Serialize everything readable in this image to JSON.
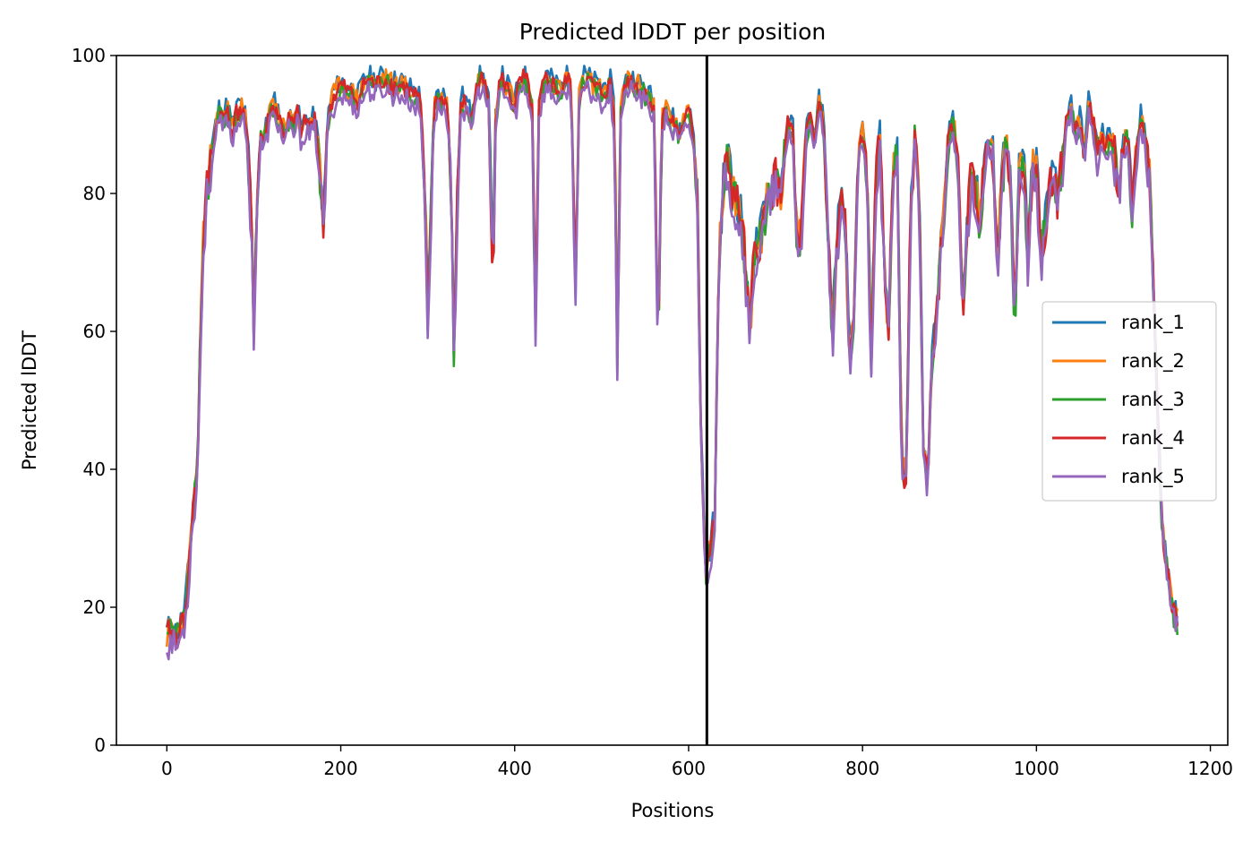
{
  "chart_data": {
    "type": "line",
    "title": "Predicted lDDT per position",
    "xlabel": "Positions",
    "ylabel": "Predicted lDDT",
    "xlim": [
      -58,
      1220
    ],
    "ylim": [
      0,
      100
    ],
    "xticks": [
      0,
      200,
      400,
      600,
      800,
      1000,
      1200
    ],
    "yticks": [
      0,
      20,
      40,
      60,
      80,
      100
    ],
    "grid": false,
    "legend_position": "center-right",
    "vline_x": 621,
    "vline_color": "#000000",
    "base_profile": [
      [
        0,
        15
      ],
      [
        5,
        16
      ],
      [
        10,
        15
      ],
      [
        15,
        16
      ],
      [
        20,
        18
      ],
      [
        25,
        24
      ],
      [
        30,
        34
      ],
      [
        35,
        38
      ],
      [
        38,
        55
      ],
      [
        42,
        72
      ],
      [
        46,
        80
      ],
      [
        50,
        84
      ],
      [
        55,
        88
      ],
      [
        60,
        91
      ],
      [
        65,
        90
      ],
      [
        70,
        92
      ],
      [
        75,
        88
      ],
      [
        80,
        91
      ],
      [
        85,
        92
      ],
      [
        90,
        90
      ],
      [
        95,
        82
      ],
      [
        98,
        72
      ],
      [
        100,
        60
      ],
      [
        104,
        80
      ],
      [
        108,
        88
      ],
      [
        112,
        87
      ],
      [
        118,
        91
      ],
      [
        125,
        92
      ],
      [
        130,
        90
      ],
      [
        135,
        88
      ],
      [
        140,
        90
      ],
      [
        145,
        89
      ],
      [
        150,
        91
      ],
      [
        155,
        88
      ],
      [
        160,
        90
      ],
      [
        165,
        89
      ],
      [
        170,
        90
      ],
      [
        175,
        85
      ],
      [
        180,
        75
      ],
      [
        185,
        90
      ],
      [
        190,
        93
      ],
      [
        200,
        95
      ],
      [
        210,
        94
      ],
      [
        220,
        93
      ],
      [
        230,
        96
      ],
      [
        240,
        95
      ],
      [
        250,
        96
      ],
      [
        260,
        95
      ],
      [
        270,
        95
      ],
      [
        280,
        94
      ],
      [
        290,
        93
      ],
      [
        293,
        90
      ],
      [
        297,
        78
      ],
      [
        300,
        62
      ],
      [
        303,
        72
      ],
      [
        307,
        92
      ],
      [
        312,
        93
      ],
      [
        318,
        93
      ],
      [
        323,
        92
      ],
      [
        327,
        80
      ],
      [
        330,
        56
      ],
      [
        334,
        78
      ],
      [
        338,
        93
      ],
      [
        345,
        92
      ],
      [
        350,
        90
      ],
      [
        355,
        94
      ],
      [
        360,
        96
      ],
      [
        365,
        95
      ],
      [
        370,
        93
      ],
      [
        375,
        66
      ],
      [
        378,
        90
      ],
      [
        383,
        96
      ],
      [
        390,
        95
      ],
      [
        400,
        92
      ],
      [
        405,
        95
      ],
      [
        410,
        96
      ],
      [
        415,
        95
      ],
      [
        420,
        92
      ],
      [
        424,
        60
      ],
      [
        428,
        92
      ],
      [
        435,
        96
      ],
      [
        445,
        95
      ],
      [
        455,
        94
      ],
      [
        460,
        96
      ],
      [
        465,
        95
      ],
      [
        470,
        66
      ],
      [
        474,
        93
      ],
      [
        480,
        96
      ],
      [
        490,
        95
      ],
      [
        500,
        94
      ],
      [
        510,
        95
      ],
      [
        515,
        90
      ],
      [
        518,
        55
      ],
      [
        522,
        92
      ],
      [
        530,
        96
      ],
      [
        540,
        95
      ],
      [
        550,
        94
      ],
      [
        560,
        92
      ],
      [
        565,
        57
      ],
      [
        569,
        90
      ],
      [
        575,
        92
      ],
      [
        580,
        90
      ],
      [
        590,
        88
      ],
      [
        600,
        91
      ],
      [
        605,
        88
      ],
      [
        610,
        80
      ],
      [
        615,
        40
      ],
      [
        620,
        25
      ],
      [
        625,
        28
      ],
      [
        630,
        32
      ],
      [
        635,
        70
      ],
      [
        640,
        80
      ],
      [
        645,
        85
      ],
      [
        650,
        80
      ],
      [
        655,
        78
      ],
      [
        660,
        76
      ],
      [
        665,
        70
      ],
      [
        670,
        58
      ],
      [
        675,
        70
      ],
      [
        680,
        72
      ],
      [
        685,
        74
      ],
      [
        690,
        78
      ],
      [
        695,
        80
      ],
      [
        700,
        82
      ],
      [
        705,
        78
      ],
      [
        710,
        85
      ],
      [
        715,
        90
      ],
      [
        720,
        88
      ],
      [
        725,
        70
      ],
      [
        730,
        75
      ],
      [
        735,
        88
      ],
      [
        740,
        90
      ],
      [
        745,
        86
      ],
      [
        750,
        93
      ],
      [
        755,
        90
      ],
      [
        760,
        75
      ],
      [
        765,
        58
      ],
      [
        770,
        70
      ],
      [
        775,
        80
      ],
      [
        780,
        75
      ],
      [
        785,
        55
      ],
      [
        790,
        60
      ],
      [
        795,
        85
      ],
      [
        800,
        88
      ],
      [
        805,
        82
      ],
      [
        810,
        55
      ],
      [
        815,
        80
      ],
      [
        820,
        88
      ],
      [
        825,
        68
      ],
      [
        830,
        60
      ],
      [
        835,
        82
      ],
      [
        840,
        85
      ],
      [
        845,
        40
      ],
      [
        850,
        38
      ],
      [
        855,
        75
      ],
      [
        860,
        88
      ],
      [
        865,
        82
      ],
      [
        870,
        42
      ],
      [
        875,
        38
      ],
      [
        880,
        55
      ],
      [
        885,
        62
      ],
      [
        890,
        70
      ],
      [
        895,
        80
      ],
      [
        900,
        88
      ],
      [
        905,
        90
      ],
      [
        910,
        82
      ],
      [
        915,
        62
      ],
      [
        920,
        75
      ],
      [
        925,
        82
      ],
      [
        930,
        80
      ],
      [
        935,
        75
      ],
      [
        940,
        84
      ],
      [
        945,
        88
      ],
      [
        950,
        85
      ],
      [
        955,
        70
      ],
      [
        960,
        80
      ],
      [
        965,
        88
      ],
      [
        970,
        82
      ],
      [
        975,
        60
      ],
      [
        980,
        82
      ],
      [
        985,
        85
      ],
      [
        990,
        70
      ],
      [
        995,
        82
      ],
      [
        1000,
        84
      ],
      [
        1005,
        70
      ],
      [
        1010,
        75
      ],
      [
        1015,
        80
      ],
      [
        1020,
        82
      ],
      [
        1025,
        78
      ],
      [
        1030,
        85
      ],
      [
        1035,
        90
      ],
      [
        1040,
        92
      ],
      [
        1045,
        88
      ],
      [
        1050,
        90
      ],
      [
        1055,
        85
      ],
      [
        1060,
        92
      ],
      [
        1065,
        90
      ],
      [
        1070,
        85
      ],
      [
        1075,
        88
      ],
      [
        1080,
        86
      ],
      [
        1085,
        88
      ],
      [
        1090,
        85
      ],
      [
        1095,
        80
      ],
      [
        1100,
        86
      ],
      [
        1105,
        88
      ],
      [
        1110,
        75
      ],
      [
        1115,
        85
      ],
      [
        1120,
        90
      ],
      [
        1125,
        88
      ],
      [
        1130,
        82
      ],
      [
        1135,
        65
      ],
      [
        1140,
        45
      ],
      [
        1145,
        30
      ],
      [
        1150,
        25
      ],
      [
        1155,
        20
      ],
      [
        1160,
        18
      ],
      [
        1163,
        17
      ]
    ],
    "series": [
      {
        "name": "rank_1",
        "color": "#1f77b4",
        "offset": 1.4,
        "noise_seed": 11
      },
      {
        "name": "rank_2",
        "color": "#ff7f0e",
        "offset": 0.9,
        "noise_seed": 23
      },
      {
        "name": "rank_3",
        "color": "#2ca02c",
        "offset": 0.3,
        "noise_seed": 37
      },
      {
        "name": "rank_4",
        "color": "#d62728",
        "offset": 0.6,
        "noise_seed": 41
      },
      {
        "name": "rank_5",
        "color": "#9467bd",
        "offset": -0.8,
        "noise_seed": 53
      }
    ]
  }
}
